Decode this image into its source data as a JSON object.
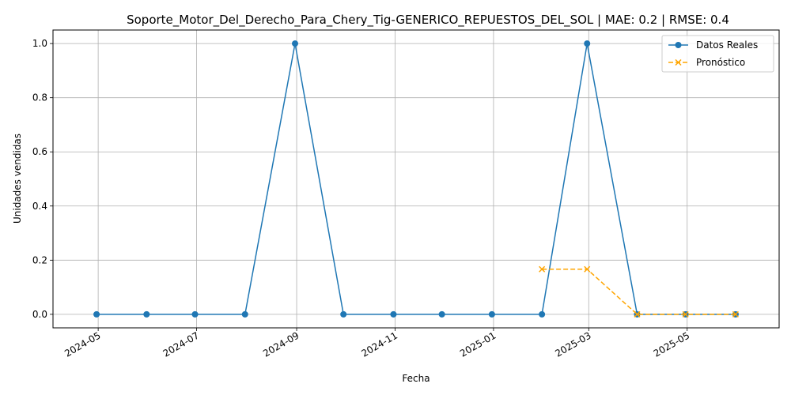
{
  "chart_data": {
    "type": "line",
    "title": "Soporte_Motor_Del_Derecho_Para_Chery_Tig-GENERICO_REPUESTOS_DEL_SOL | MAE: 0.2 | RMSE: 0.4",
    "xlabel": "Fecha",
    "ylabel": "Unidades vendidas",
    "xlim": [
      "2024-04-03",
      "2025-06-27"
    ],
    "ylim": [
      -0.05,
      1.05
    ],
    "x_ticks": [
      "2024-05",
      "2024-07",
      "2024-09",
      "2024-11",
      "2025-01",
      "2025-03",
      "2025-05"
    ],
    "y_ticks": [
      "0.0",
      "0.2",
      "0.4",
      "0.6",
      "0.8",
      "1.0"
    ],
    "grid": true,
    "legend_position": "top-right",
    "series": [
      {
        "name": "Datos Reales",
        "color": "#1f77b4",
        "marker": "circle",
        "linestyle": "solid",
        "x": [
          "2024-04-30",
          "2024-05-31",
          "2024-06-30",
          "2024-07-31",
          "2024-08-31",
          "2024-09-30",
          "2024-10-31",
          "2024-11-30",
          "2024-12-31",
          "2025-01-31",
          "2025-02-28",
          "2025-03-31",
          "2025-04-30",
          "2025-05-31"
        ],
        "values": [
          0,
          0,
          0,
          0,
          1,
          0,
          0,
          0,
          0,
          0,
          1,
          0,
          0,
          0
        ]
      },
      {
        "name": "Pronóstico",
        "color": "#ffa500",
        "marker": "x",
        "linestyle": "dashed",
        "x": [
          "2025-01-31",
          "2025-02-28",
          "2025-03-31",
          "2025-04-30",
          "2025-05-31"
        ],
        "values": [
          0.1667,
          0.1667,
          0,
          0,
          0
        ]
      }
    ]
  }
}
